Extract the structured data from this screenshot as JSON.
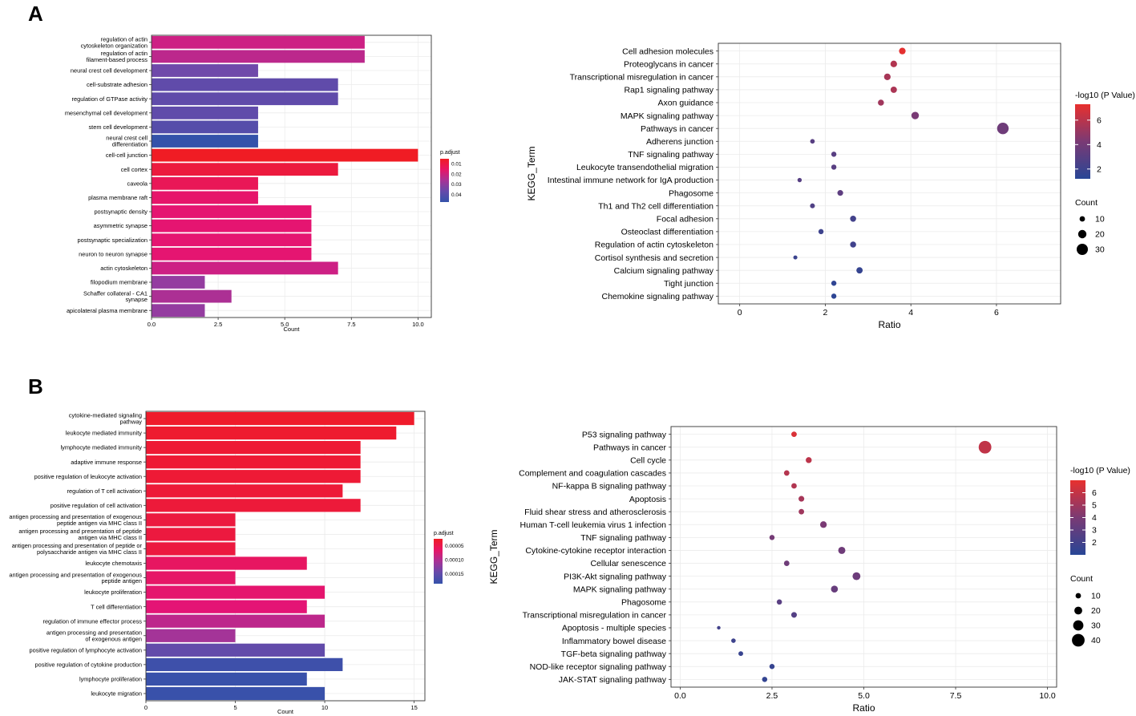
{
  "panels": {
    "a": {
      "label": "A"
    },
    "b": {
      "label": "B"
    }
  },
  "chart_data": [
    {
      "id": "A-GO",
      "panel": "A",
      "type": "bar",
      "orientation": "horizontal",
      "xlabel": "Count",
      "xlim": [
        0,
        10.5
      ],
      "xticks": [
        0,
        2.5,
        5,
        7.5,
        10
      ],
      "xtick_labels": [
        "0.0",
        "2.5",
        "5.0",
        "7.5",
        "10.0"
      ],
      "color_legend_title": "p.adjust",
      "color_legend_labels": [
        "0.01",
        "0.02",
        "0.03",
        "0.04"
      ],
      "color_range": [
        0.004,
        0.045
      ],
      "categories": [
        [
          "regulation of actin",
          "cytoskeleton organization"
        ],
        [
          "regulation of actin",
          "filament-based process"
        ],
        [
          "neural crest cell development"
        ],
        [
          "cell-substrate adhesion"
        ],
        [
          "regulation of GTPase activity"
        ],
        [
          "mesenchymal cell development"
        ],
        [
          "stem cell development"
        ],
        [
          "neural crest cell",
          "differentiation"
        ],
        [
          "cell-cell junction"
        ],
        [
          "cell cortex"
        ],
        [
          "caveola"
        ],
        [
          "plasma membrane raft"
        ],
        [
          "postsynaptic density"
        ],
        [
          "asymmetric synapse"
        ],
        [
          "postsynaptic specialization"
        ],
        [
          "neuron to neuron synapse"
        ],
        [
          "actin cytoskeleton"
        ],
        [
          "filopodium membrane"
        ],
        [
          "Schaffer collateral - CA1",
          "synapse"
        ],
        [
          "apicolateral plasma membrane"
        ]
      ],
      "values": [
        8,
        8,
        4,
        7,
        7,
        4,
        4,
        4,
        10,
        7,
        4,
        4,
        6,
        6,
        6,
        6,
        7,
        2,
        3,
        2
      ],
      "p_adjust": [
        0.02,
        0.022,
        0.033,
        0.036,
        0.036,
        0.036,
        0.038,
        0.045,
        0.004,
        0.008,
        0.012,
        0.015,
        0.016,
        0.016,
        0.016,
        0.016,
        0.02,
        0.027,
        0.024,
        0.027
      ]
    },
    {
      "id": "A-KEGG",
      "panel": "A",
      "type": "scatter",
      "xlabel": "Ratio",
      "ylabel": "KEGG_Term",
      "xlim": [
        -0.5,
        7.5
      ],
      "xticks": [
        0,
        2,
        4,
        6
      ],
      "xtick_labels": [
        "0",
        "2",
        "4",
        "6"
      ],
      "color_legend_title": "-log10 (P Value)",
      "color_range": [
        1.2,
        7.3
      ],
      "color_legend_ticks": [
        2,
        4,
        6
      ],
      "color_legend_labels": [
        "2",
        "4",
        "6"
      ],
      "size_legend_title": "Count",
      "size_legend_values": [
        10,
        20,
        30
      ],
      "size_legend_labels": [
        "10",
        "20",
        "30"
      ],
      "size_scale": {
        "min_count": 5,
        "min_r": 2.5,
        "per_count": 0.18
      },
      "terms": [
        "Cell adhesion molecules",
        "Proteoglycans in cancer",
        "Transcriptional misregulation in cancer",
        "Rap1 signaling pathway",
        "Axon guidance",
        "MAPK signaling pathway",
        "Pathways in cancer",
        "Adherens junction",
        "TNF signaling pathway",
        "Leukocyte transendothelial migration",
        "Intestinal immune network for IgA production",
        "Phagosome",
        "Th1 and Th2 cell differentiation",
        "Focal adhesion",
        "Osteoclast differentiation",
        "Regulation of actin cytoskeleton",
        "Cortisol synthesis and secretion",
        "Calcium signaling pathway",
        "Tight junction",
        "Chemokine signaling pathway"
      ],
      "ratio": [
        3.8,
        3.6,
        3.45,
        3.6,
        3.3,
        4.1,
        6.15,
        1.7,
        2.2,
        2.2,
        1.4,
        2.35,
        1.7,
        2.65,
        1.9,
        2.65,
        1.3,
        2.8,
        2.2,
        2.2
      ],
      "count": [
        14,
        14,
        14,
        13,
        12,
        17,
        31,
        7,
        9,
        9,
        6,
        11,
        8,
        12,
        9,
        12,
        5,
        13,
        9,
        9
      ],
      "neglog10p": [
        7.2,
        5.8,
        5.5,
        5.6,
        5.3,
        4.2,
        3.8,
        3.0,
        3.0,
        3.0,
        2.9,
        3.2,
        2.7,
        2.2,
        2.0,
        2.1,
        1.9,
        1.7,
        1.5,
        1.4
      ]
    },
    {
      "id": "B-GO",
      "panel": "B",
      "type": "bar",
      "orientation": "horizontal",
      "xlabel": "Count",
      "xlim": [
        0,
        15.6
      ],
      "xticks": [
        0,
        5,
        10,
        15
      ],
      "xtick_labels": [
        "0",
        "5",
        "10",
        "15"
      ],
      "color_legend_title": "p.adjust",
      "color_legend_labels": [
        "0.00005",
        "0.00010",
        "0.00015"
      ],
      "color_range": [
        0.0,
        0.000195
      ],
      "categories": [
        [
          "cytokine-mediated signaling",
          "pathway"
        ],
        [
          "leukocyte mediated immunity"
        ],
        [
          "lymphocyte mediated immunity"
        ],
        [
          "adaptive immune response"
        ],
        [
          "positive regulation of leukocyte activation"
        ],
        [
          "regulation of T cell activation"
        ],
        [
          "positive regulation of cell activation"
        ],
        [
          "antigen processing and presentation of exogenous",
          "peptide antigen via MHC class II"
        ],
        [
          "antigen processing and presentation of peptide",
          "antigen via MHC class II"
        ],
        [
          "antigen processing and presentation of peptide or",
          "polysaccharide antigen via MHC class II"
        ],
        [
          "leukocyte chemotaxis"
        ],
        [
          "antigen processing and presentation of exogenous",
          "peptide antigen"
        ],
        [
          "leukocyte proliferation"
        ],
        [
          "T cell differentiation"
        ],
        [
          "regulation of immune effector process"
        ],
        [
          "antigen processing and presentation",
          "of exogenous antigen"
        ],
        [
          "positive regulation of lymphocyte activation"
        ],
        [
          "positive regulation of cytokine production"
        ],
        [
          "lymphocyte proliferation"
        ],
        [
          "leukocyte migration"
        ]
      ],
      "values": [
        15,
        14,
        12,
        12,
        12,
        11,
        12,
        5,
        5,
        5,
        9,
        5,
        10,
        9,
        10,
        5,
        10,
        11,
        9,
        10
      ],
      "p_adjust": [
        5e-06,
        8e-06,
        1.2e-05,
        1.2e-05,
        1.3e-05,
        1.5e-05,
        1.6e-05,
        2e-05,
        2e-05,
        2e-05,
        4.5e-05,
        5e-05,
        5.5e-05,
        6e-05,
        8.5e-05,
        0.0001,
        0.00015,
        0.000185,
        0.00019,
        0.00019
      ]
    },
    {
      "id": "B-KEGG",
      "panel": "B",
      "type": "scatter",
      "xlabel": "Ratio",
      "ylabel": "KEGG_Term",
      "xlim": [
        -0.25,
        10.25
      ],
      "xticks": [
        0,
        2.5,
        5,
        7.5,
        10
      ],
      "xtick_labels": [
        "0.0",
        "2.5",
        "5.0",
        "7.5",
        "10.0"
      ],
      "color_legend_title": "-log10 (P Value)",
      "color_range": [
        1.0,
        7.0
      ],
      "color_legend_ticks": [
        2,
        3,
        4,
        5,
        6
      ],
      "color_legend_labels": [
        "2",
        "3",
        "4",
        "5",
        "6"
      ],
      "size_legend_title": "Count",
      "size_legend_values": [
        10,
        20,
        30,
        40
      ],
      "size_legend_labels": [
        "10",
        "20",
        "30",
        "40"
      ],
      "size_scale": {
        "min_count": 2,
        "min_r": 2.2,
        "per_count": 0.15
      },
      "terms": [
        "P53 signaling pathway",
        "Pathways in cancer",
        "Cell cycle",
        "Complement and coagulation cascades",
        "NF-kappa B signaling pathway",
        "Apoptosis",
        "Fluid shear stress and atherosclerosis",
        "Human T-cell leukemia virus 1 infection",
        "TNF signaling pathway",
        "Cytokine-cytokine receptor interaction",
        "Cellular senescence",
        "PI3K-Akt signaling pathway",
        "MAPK signaling pathway",
        "Phagosome",
        "Transcriptional misregulation in cancer",
        "Apoptosis - multiple species",
        "Inflammatory bowel disease",
        "TGF-beta signaling pathway",
        "NOD-like receptor signaling pathway",
        "JAK-STAT signaling pathway"
      ],
      "ratio": [
        3.1,
        8.3,
        3.5,
        2.9,
        3.1,
        3.3,
        3.3,
        3.9,
        2.5,
        4.4,
        2.9,
        4.8,
        4.2,
        2.7,
        3.1,
        1.05,
        1.45,
        1.65,
        2.5,
        2.3
      ],
      "count": [
        10,
        40,
        12,
        10,
        10,
        11,
        10,
        15,
        9,
        17,
        10,
        20,
        16,
        9,
        11,
        2,
        6,
        7,
        9,
        9
      ],
      "neglog10p": [
        6.6,
        5.9,
        5.8,
        5.6,
        5.5,
        5.2,
        5.0,
        4.0,
        3.8,
        3.6,
        3.6,
        3.5,
        3.3,
        2.8,
        2.6,
        2.0,
        1.8,
        1.6,
        1.5,
        1.4
      ]
    }
  ]
}
